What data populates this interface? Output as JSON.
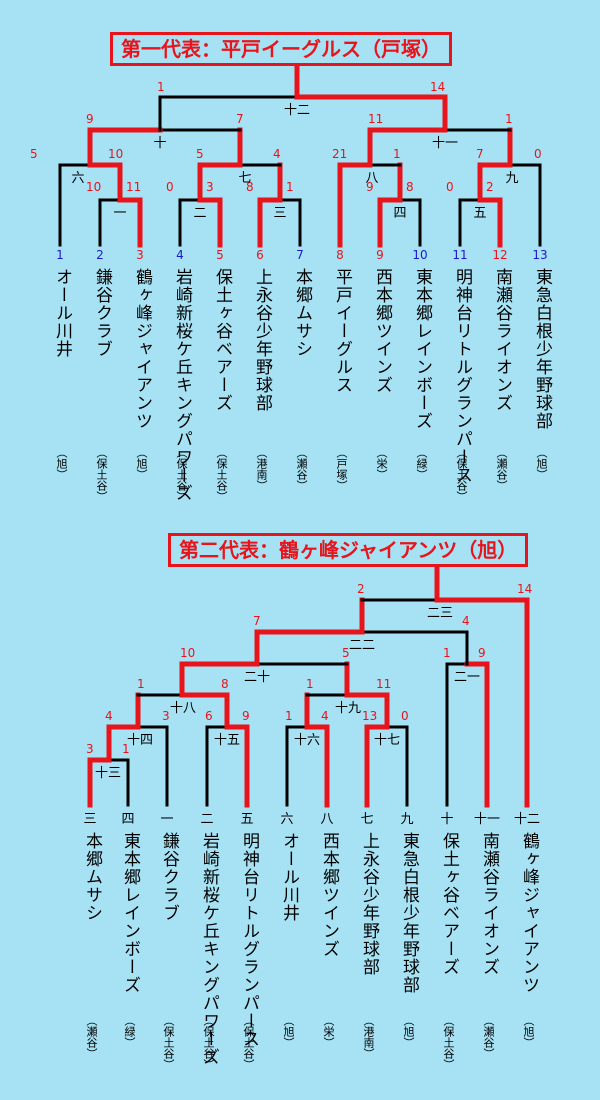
{
  "bracket1": {
    "title": "第一代表：平戸イーグルス（戸塚）",
    "teams": [
      {
        "no": "1",
        "name": "オール川井",
        "area": "（旭）",
        "win": false
      },
      {
        "no": "2",
        "name": "鎌谷クラブ",
        "area": "（保土谷）",
        "win": false
      },
      {
        "no": "3",
        "name": "鶴ヶ峰ジャイアンツ",
        "area": "（旭）",
        "win": true
      },
      {
        "no": "4",
        "name": "岩崎新桜ケ丘キングパワーズ",
        "area": "（保土谷）",
        "win": false
      },
      {
        "no": "5",
        "name": "保土ヶ谷ベアーズ",
        "area": "（保土谷）",
        "win": true
      },
      {
        "no": "6",
        "name": "上永谷少年野球部",
        "area": "（港南）",
        "win": true
      },
      {
        "no": "7",
        "name": "本郷ムサシ",
        "area": "（瀬谷）",
        "win": false
      },
      {
        "no": "8",
        "name": "平戸イーグルス",
        "area": "（戸塚）",
        "win": true
      },
      {
        "no": "9",
        "name": "西本郷ツインズ",
        "area": "（栄）",
        "win": true
      },
      {
        "no": "10",
        "name": "東本郷レインボーズ",
        "area": "（緑）",
        "win": false
      },
      {
        "no": "11",
        "name": "明神台リトルグランパース",
        "area": "（保土谷）",
        "win": false
      },
      {
        "no": "12",
        "name": "南瀬谷ライオンズ",
        "area": "（瀬谷）",
        "win": true
      },
      {
        "no": "13",
        "name": "東急白根少年野球部",
        "area": "（旭）",
        "win": false
      }
    ],
    "matches": [
      {
        "label": "一",
        "scores": [
          "",
          "10",
          "11"
        ]
      },
      {
        "label": "二",
        "scores": [
          "",
          "0",
          "3"
        ]
      },
      {
        "label": "三",
        "scores": [
          "",
          "8",
          "1"
        ]
      },
      {
        "label": "四",
        "scores": [
          "",
          "9",
          "8"
        ]
      },
      {
        "label": "五",
        "scores": [
          "",
          "0",
          "2"
        ]
      },
      {
        "label": "六",
        "scores": [
          "",
          "5",
          "10"
        ]
      },
      {
        "label": "七",
        "scores": [
          "",
          "5",
          "4"
        ]
      },
      {
        "label": "八",
        "scores": [
          "",
          "21",
          "1"
        ]
      },
      {
        "label": "九",
        "scores": [
          "",
          "7",
          "0"
        ]
      },
      {
        "label": "十",
        "scores": [
          "",
          "9",
          "7"
        ]
      },
      {
        "label": "十一",
        "scores": [
          "",
          "11",
          "1"
        ]
      },
      {
        "label": "十二",
        "scores": [
          "",
          "1",
          "14"
        ]
      }
    ]
  },
  "bracket2": {
    "title": "第二代表：鶴ヶ峰ジャイアンツ（旭）",
    "teams": [
      {
        "no": "三",
        "name": "本郷ムサシ",
        "area": "（瀬谷）",
        "win": true
      },
      {
        "no": "四",
        "name": "東本郷レインボーズ",
        "area": "（緑）",
        "win": false
      },
      {
        "no": "一",
        "name": "鎌谷クラブ",
        "area": "（保土谷）",
        "win": false
      },
      {
        "no": "二",
        "name": "岩崎新桜ケ丘キングパワーズ",
        "area": "（保土谷）",
        "win": false
      },
      {
        "no": "五",
        "name": "明神台リトルグランパース",
        "area": "（保土谷）",
        "win": true
      },
      {
        "no": "六",
        "name": "オール川井",
        "area": "（旭）",
        "win": false
      },
      {
        "no": "八",
        "name": "西本郷ツインズ",
        "area": "（栄）",
        "win": true
      },
      {
        "no": "七",
        "name": "上永谷少年野球部",
        "area": "（港南）",
        "win": true
      },
      {
        "no": "九",
        "name": "東急白根少年野球部",
        "area": "（旭）",
        "win": false
      },
      {
        "no": "十",
        "name": "保土ヶ谷ベアーズ",
        "area": "（保土谷）",
        "win": false
      },
      {
        "no": "十一",
        "name": "南瀬谷ライオンズ",
        "area": "（瀬谷）",
        "win": true
      },
      {
        "no": "十二",
        "name": "鶴ヶ峰ジャイアンツ",
        "area": "（旭）",
        "win": true
      }
    ],
    "matches": [
      {
        "label": "十三",
        "scores": [
          "3",
          "1"
        ]
      },
      {
        "label": "十四",
        "scores": [
          "4",
          "3"
        ]
      },
      {
        "label": "十五",
        "scores": [
          "6",
          "9"
        ]
      },
      {
        "label": "十六",
        "scores": [
          "1",
          "4"
        ]
      },
      {
        "label": "十七",
        "scores": [
          "13",
          "0"
        ]
      },
      {
        "label": "十八",
        "scores": [
          "1",
          "8"
        ]
      },
      {
        "label": "十九",
        "scores": [
          "1",
          "11"
        ]
      },
      {
        "label": "二十",
        "scores": [
          "10",
          "5"
        ]
      },
      {
        "label": "二一",
        "scores": [
          "1",
          "9"
        ]
      },
      {
        "label": "二二",
        "scores": [
          "7",
          "4"
        ]
      },
      {
        "label": "二三",
        "scores": [
          "2",
          "14"
        ]
      }
    ]
  },
  "colors": {
    "background": "#a6e2f4",
    "win": "#e8141c",
    "line": "#000000",
    "number": "#1a1acc"
  }
}
